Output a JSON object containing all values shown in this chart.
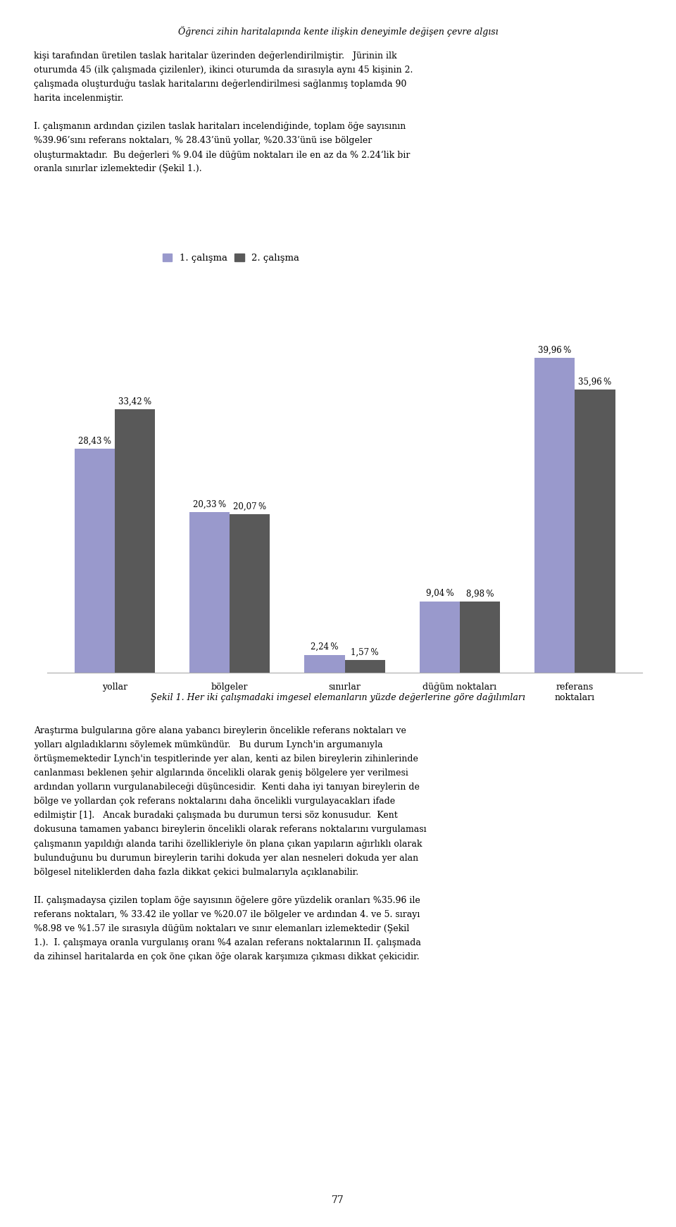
{
  "page_title": "Öğrenci zihin haritalарında kente ilişkin deneyimle değişen çevre algısı",
  "categories": [
    "yollar",
    "bölgeler",
    "sınırlar",
    "düğüm noktaları",
    "referans\nnoktaları"
  ],
  "series1_label": "1. çalışma",
  "series2_label": "2. çalışma",
  "series1_values": [
    28.43,
    20.33,
    2.24,
    9.04,
    39.96
  ],
  "series2_values": [
    33.42,
    20.07,
    1.57,
    8.98,
    35.96
  ],
  "series1_color": "#9999cc",
  "series2_color": "#595959",
  "bar_width": 0.35,
  "ylim": [
    0,
    46
  ],
  "label_fontsize": 8.5,
  "tick_fontsize": 9,
  "legend_fontsize": 9.5,
  "body_fontsize": 9,
  "figure_width": 9.6,
  "figure_height": 17.42,
  "dpi": 100,
  "sekil_label": "Şekil 1. Her iki çalışmadaki imgesel elemanların yüzde değerlerine göre dağılımları",
  "body_text_top_line1": "kişi tarafından üretilen taslak haritalar üzerinden değerlendirilmiştir.   Jürinin ilk",
  "body_text_top_line2": "oturumda 45 (ilk çalışmada çizilenler), ikinci oturumda da sırasıyla aynı 45 kişinin 2.",
  "body_text_top_line3": "çalışmada oluşturduğu taslak haritalarını değerlendirilmesi sağlanmış toplamda 90",
  "body_text_top_line4": "harita incelenmiştir.",
  "body_text_mid_line1": "I. çalışmanın ardından çizilen taslak haritaları incelendiğinde, toplam öğe sayısının",
  "body_text_mid_line2": "%39.96’sını referans noktaları, % 28.43’ünü yollar, %20.33’ünü ise bölgeler",
  "body_text_mid_line3": "oluşturmaktadır.  Bu değerleri % 9.04 ile düğüm noktaları ile en az da % 2.24‘lik bir",
  "body_text_mid_line4": "oranla sınırlar izlemektedir (Şekil 1.).",
  "page_number": "77"
}
